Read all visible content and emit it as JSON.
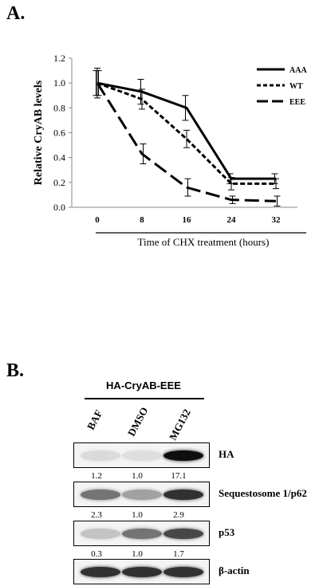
{
  "panel_a_label": "A.",
  "panel_b_label": "B.",
  "chart_data": {
    "type": "line",
    "x": [
      0,
      8,
      16,
      24,
      32
    ],
    "categories": [
      "0",
      "8",
      "16",
      "24",
      "32"
    ],
    "xlabel": "Time of CHX treatment (hours)",
    "ylabel": "Relative CryAB levels",
    "ylim": [
      0.0,
      1.2
    ],
    "yticks": [
      "0.0",
      "0.2",
      "0.4",
      "0.6",
      "0.8",
      "1.0",
      "1.2"
    ],
    "grid": false,
    "legend_position": "top-right",
    "series": [
      {
        "name": "AAA",
        "style": "solid",
        "values": [
          1.0,
          0.93,
          0.8,
          0.23,
          0.23
        ],
        "errors": [
          0.1,
          0.1,
          0.1,
          0.04,
          0.04
        ]
      },
      {
        "name": "WT",
        "style": "short-dash",
        "values": [
          1.0,
          0.87,
          0.55,
          0.19,
          0.19
        ],
        "errors": [
          0.12,
          0.08,
          0.07,
          0.05,
          0.04
        ]
      },
      {
        "name": "EEE",
        "style": "long-dash",
        "values": [
          1.0,
          0.43,
          0.16,
          0.06,
          0.05
        ],
        "errors": [
          0.1,
          0.08,
          0.07,
          0.03,
          0.04
        ]
      }
    ]
  },
  "blot": {
    "title": "HA-CryAB-EEE",
    "lanes": [
      "BAF",
      "DMSO",
      "MG132"
    ],
    "rows": [
      {
        "label": "HA",
        "band_intensity": [
          0.1,
          0.08,
          1.0
        ]
      },
      {
        "label": "Sequestosome 1/p62",
        "band_intensity": [
          0.55,
          0.35,
          0.85
        ]
      },
      {
        "label": "p53",
        "band_intensity": [
          0.2,
          0.55,
          0.75
        ]
      },
      {
        "label": "β-actin",
        "band_intensity": [
          0.85,
          0.85,
          0.85
        ]
      }
    ],
    "quantification": [
      [
        "1.2",
        "1.0",
        "17.1"
      ],
      [
        "2.3",
        "1.0",
        "2.9"
      ],
      [
        "0.3",
        "1.0",
        "1.7"
      ]
    ]
  }
}
